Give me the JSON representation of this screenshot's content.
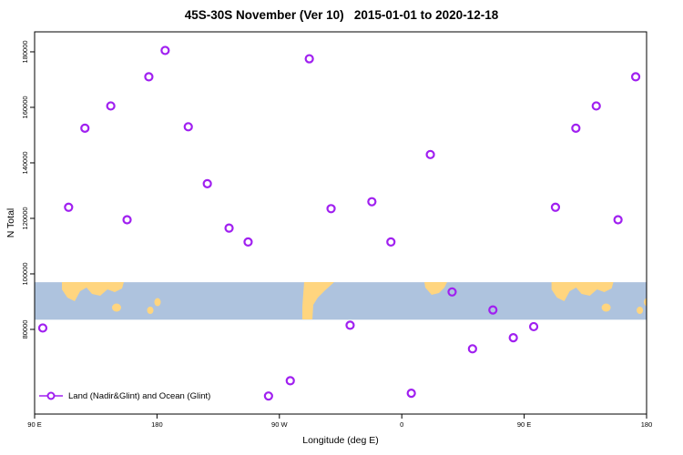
{
  "chart_data": {
    "type": "scatter",
    "title": "45S-30S November (Ver 10)   2015-01-01 to 2020-12-18",
    "xlabel": "Longitude (deg E)",
    "ylabel": "N Total",
    "xlim": [
      90,
      540
    ],
    "ylim": [
      49500,
      187200
    ],
    "grid": false,
    "x_ticks": [
      {
        "value": 90,
        "label": "90 E"
      },
      {
        "value": 180,
        "label": "180"
      },
      {
        "value": 270,
        "label": "90 W"
      },
      {
        "value": 360,
        "label": "0"
      },
      {
        "value": 450,
        "label": "90 E"
      },
      {
        "value": 540,
        "label": "180"
      }
    ],
    "y_ticks": [
      {
        "value": 80000,
        "label": "80000"
      },
      {
        "value": 100000,
        "label": "100000"
      },
      {
        "value": 120000,
        "label": "120000"
      },
      {
        "value": 140000,
        "label": "140000"
      },
      {
        "value": 160000,
        "label": "160000"
      },
      {
        "value": 180000,
        "label": "180000"
      }
    ],
    "series": [
      {
        "name": "Land (Nadir&Glint) and Ocean (Glint)",
        "marker": "open-circle",
        "color": "#A020F0",
        "points": [
          [
            96,
            80500
          ],
          [
            115,
            124000
          ],
          [
            127,
            152500
          ],
          [
            146,
            160500
          ],
          [
            158,
            119500
          ],
          [
            174,
            171000
          ],
          [
            186,
            180500
          ],
          [
            203,
            153000
          ],
          [
            217,
            132500
          ],
          [
            233,
            116500
          ],
          [
            247,
            111500
          ],
          [
            262,
            56000
          ],
          [
            278,
            61500
          ],
          [
            292,
            177500
          ],
          [
            308,
            123500
          ],
          [
            322,
            81500
          ],
          [
            338,
            126000
          ],
          [
            352,
            111500
          ],
          [
            367,
            57000
          ],
          [
            381,
            143000
          ],
          [
            397,
            93500
          ],
          [
            412,
            73000
          ],
          [
            427,
            87000
          ],
          [
            442,
            77000
          ],
          [
            457,
            81000
          ],
          [
            473,
            124000
          ],
          [
            488,
            152500
          ],
          [
            503,
            160500
          ],
          [
            519,
            119500
          ],
          [
            532,
            171000
          ]
        ]
      }
    ],
    "legend": {
      "position": "bottom-left",
      "label": "Land (Nadir&Glint) and Ocean (Glint)"
    },
    "map_band": {
      "y_top": 97000,
      "y_bottom": 83500,
      "ocean_color": "#AEC3DE",
      "land_color": "#FFD57F"
    }
  },
  "colors": {
    "background": "#FFFFFF",
    "axis": "#000000",
    "series": "#A020F0"
  }
}
